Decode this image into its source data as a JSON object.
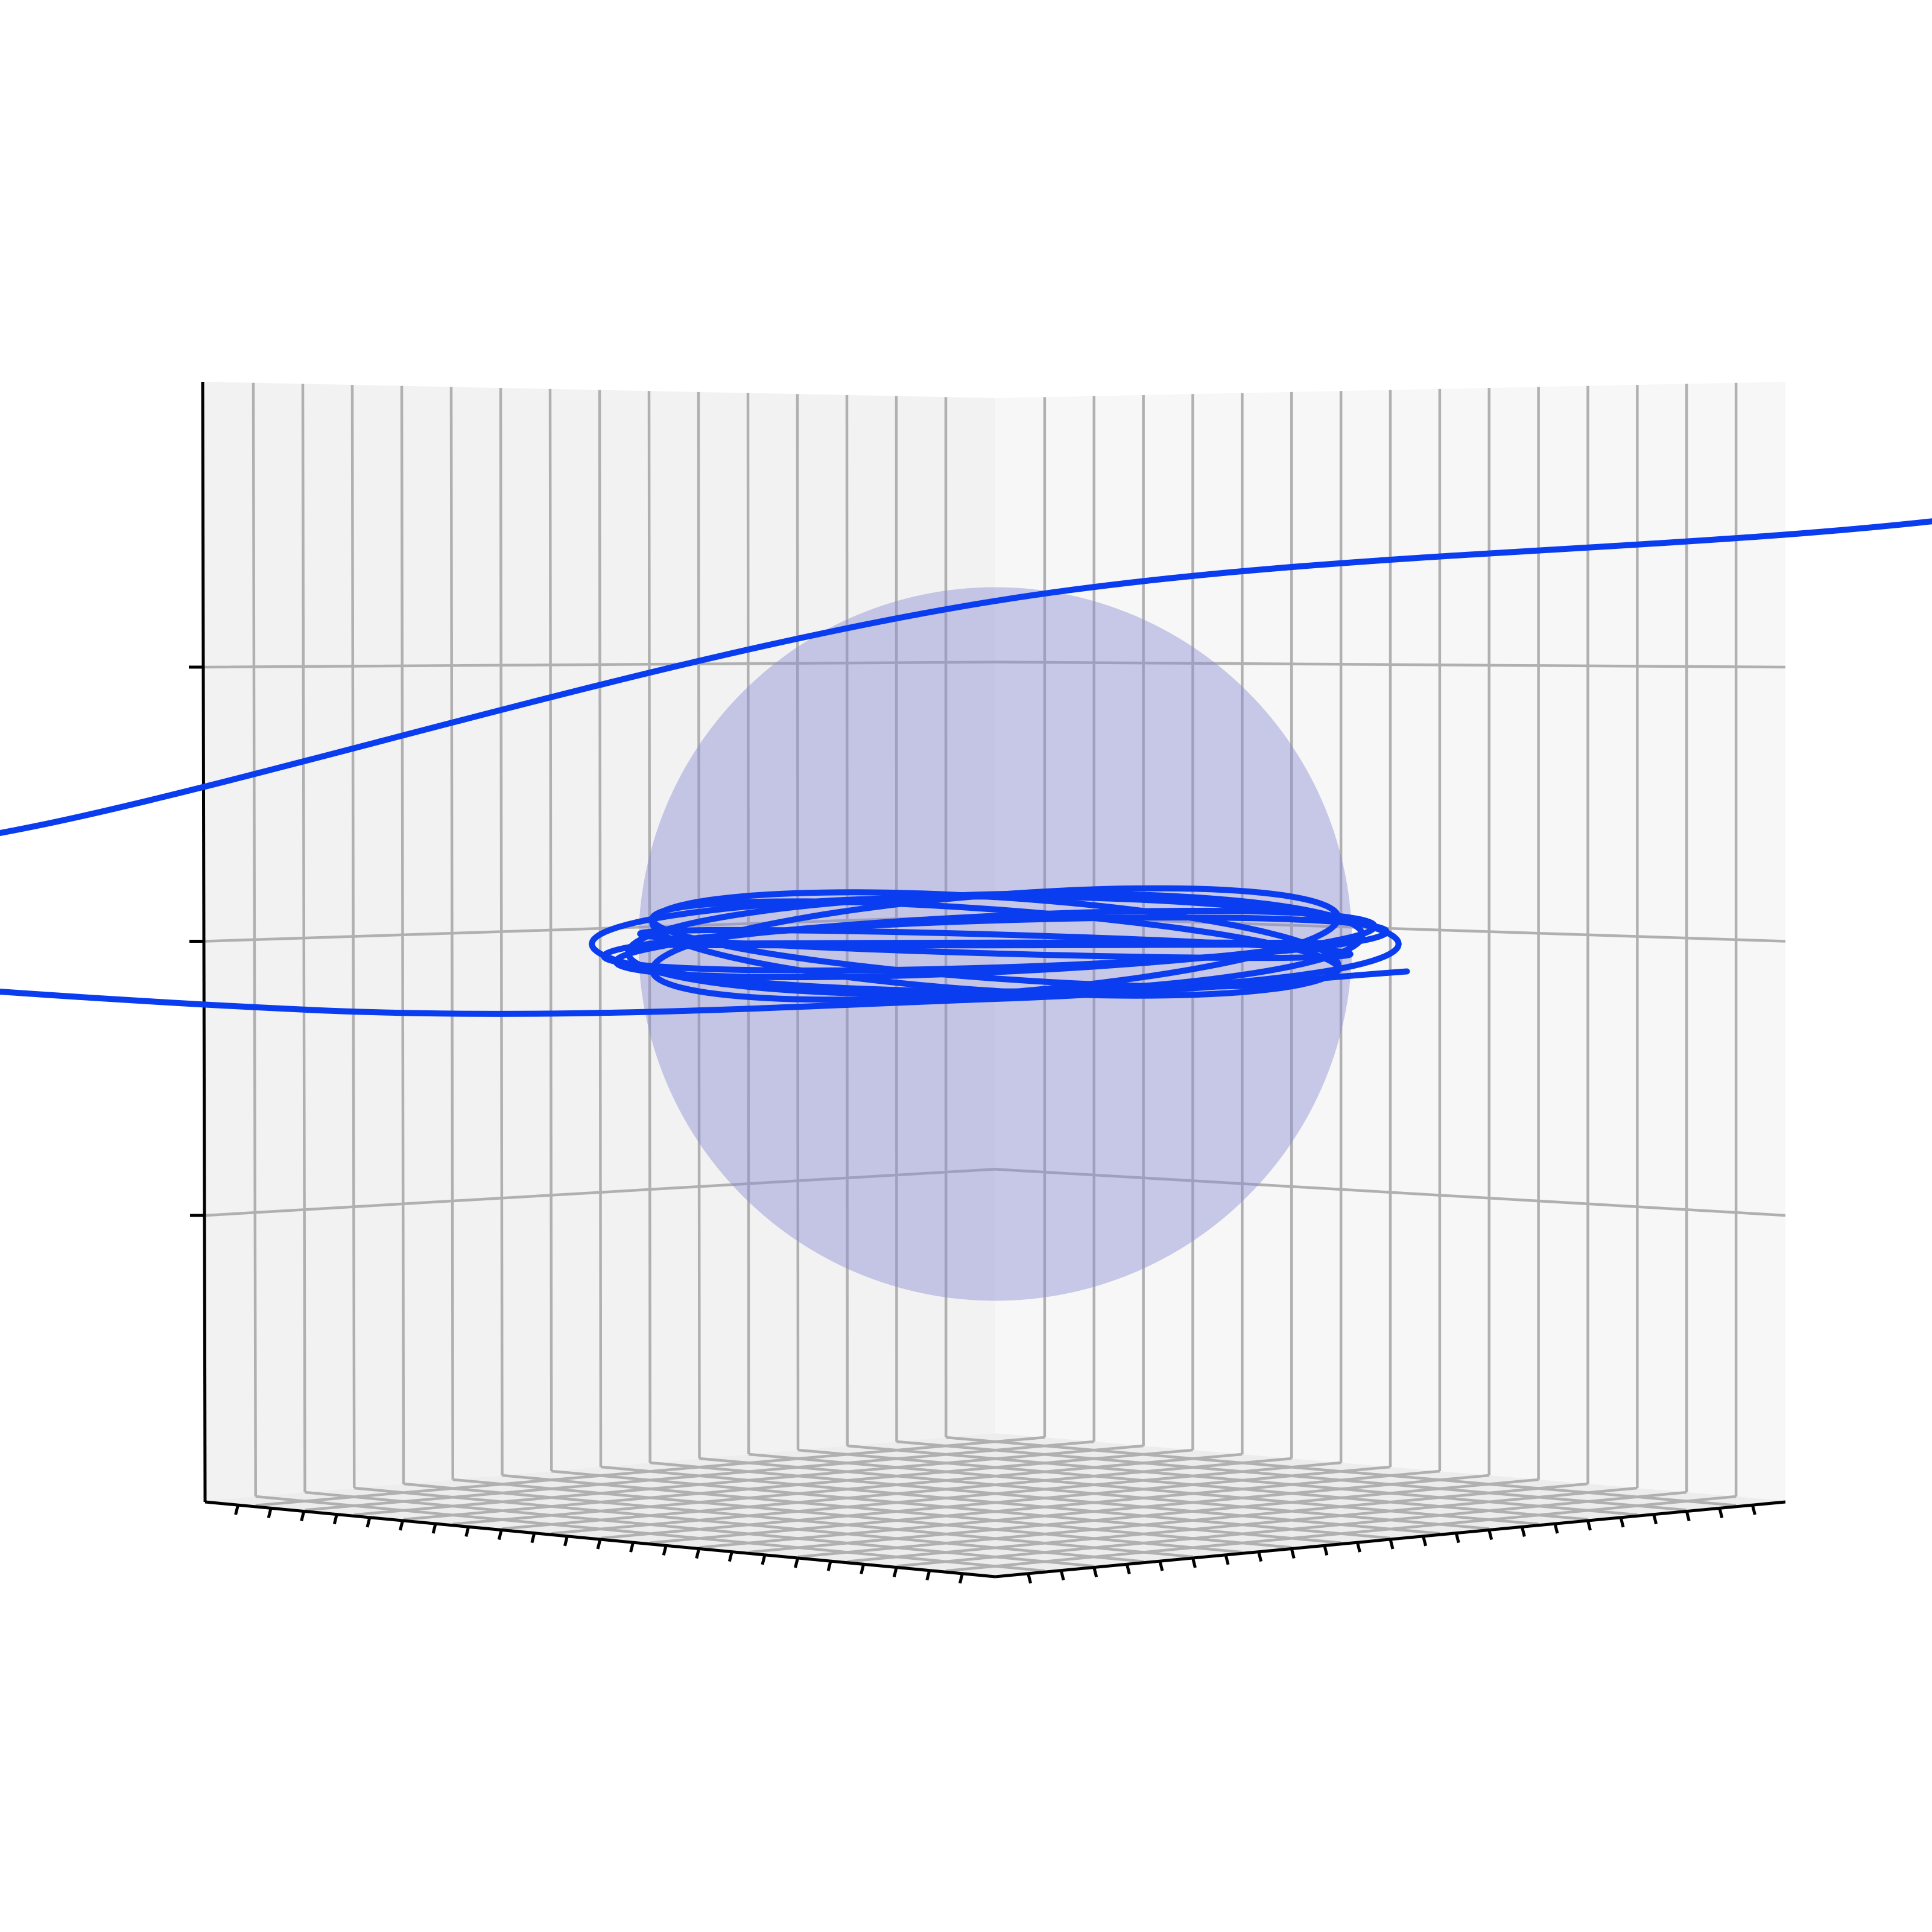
{
  "chart_data": {
    "type": "line",
    "projection": "3d",
    "title": "",
    "xlabel": "",
    "ylabel": "",
    "zlabel": "",
    "grid": true,
    "legend": "none",
    "tick_labels_visible": false,
    "z_ticks": [
      -1,
      0,
      1
    ],
    "central_body": {
      "shape": "sphere",
      "radius": 1.3,
      "center": [
        0,
        0,
        0
      ],
      "color": "#8c8cd2",
      "opacity": 0.45
    },
    "series": [
      {
        "kind": "spiral-capture-trajectory",
        "color": "#0a3cf0",
        "inbound_branch": [
          [
            6.4,
            0,
            2.0
          ],
          [
            3.5,
            0,
            1.55
          ],
          [
            0,
            0,
            1.25
          ],
          [
            -3.4,
            0,
            0.45
          ],
          [
            -5.5,
            0,
            0.05
          ],
          [
            -2.5,
            0,
            -0.24
          ],
          [
            0,
            0,
            -0.2
          ],
          [
            1.5,
            0,
            -0.1
          ]
        ],
        "loops": 9,
        "loop_radius_range": [
          1.25,
          1.47
        ],
        "loop_z_range": [
          -0.12,
          0.12
        ]
      }
    ],
    "colors": {
      "pane_left": "#f2f2f2",
      "pane_right": "#f7f7f7",
      "pane_floor": "#ededed",
      "grid": "#b0b0b0",
      "axis": "#000000"
    }
  }
}
